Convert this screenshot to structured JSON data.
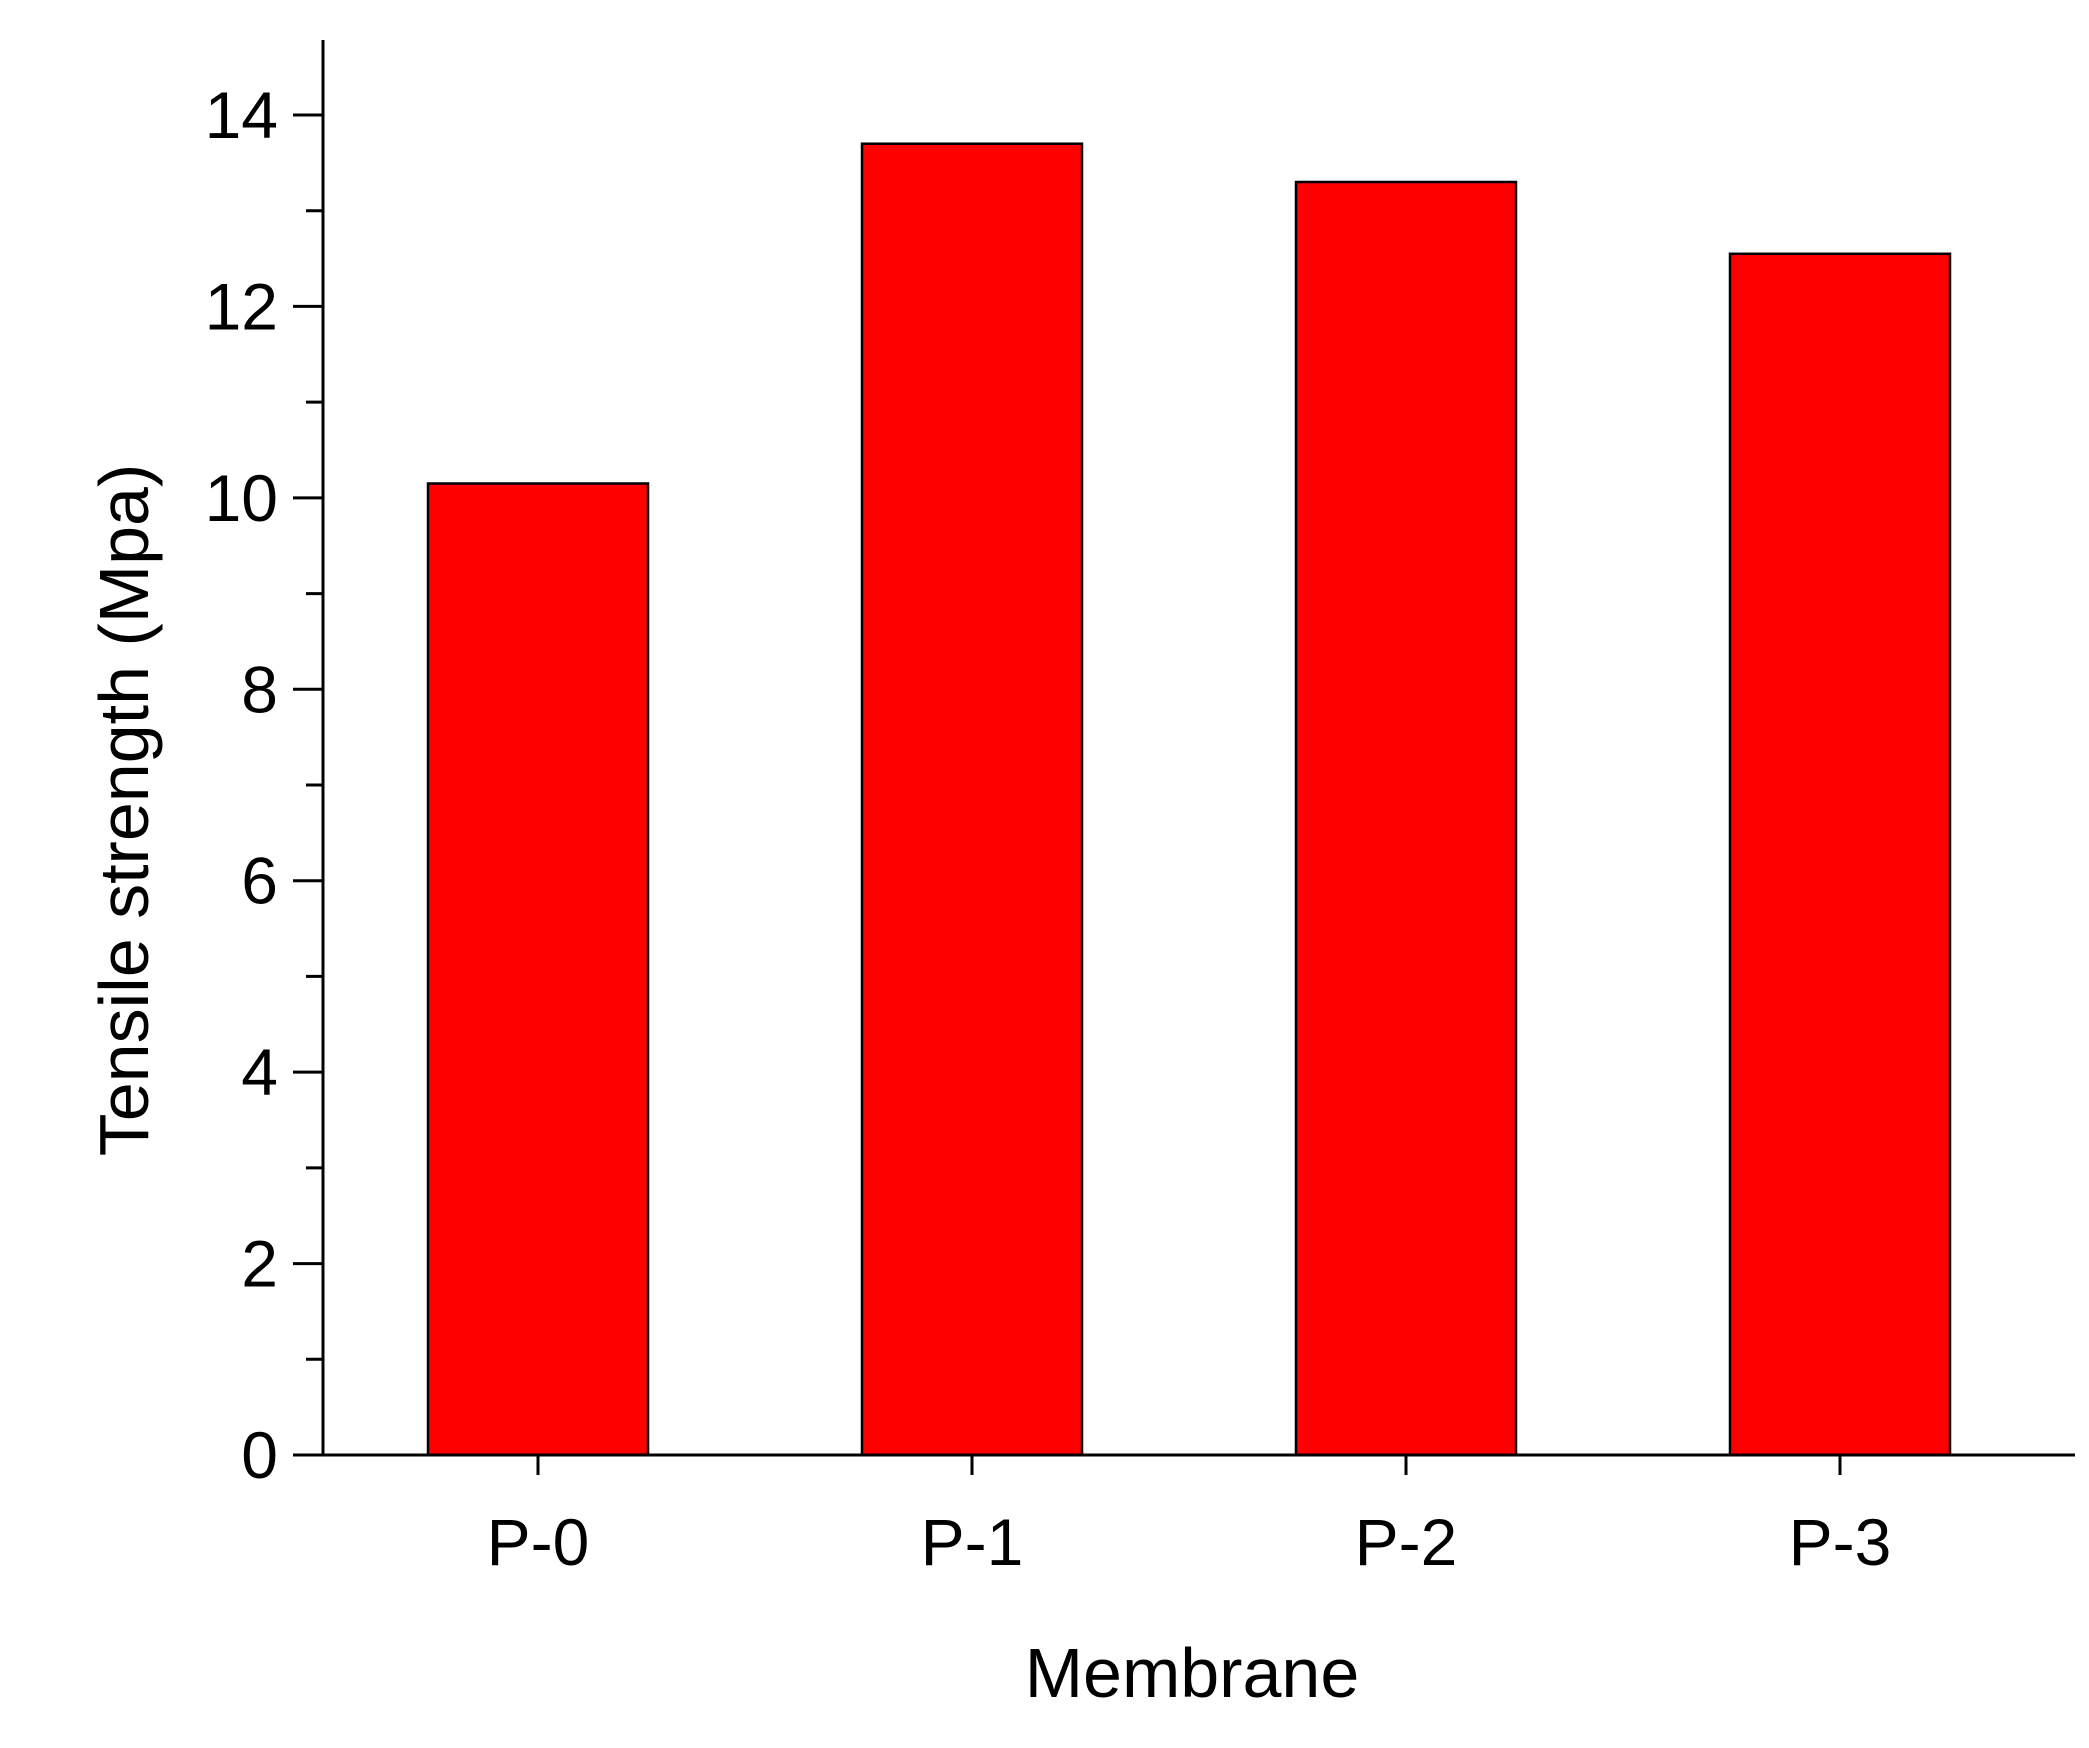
{
  "chart_data": {
    "type": "bar",
    "title": "",
    "xlabel": "Membrane",
    "ylabel": "Tensile strength (Mpa)",
    "categories": [
      "P-0",
      "P-1",
      "P-2",
      "P-3"
    ],
    "values": [
      10.15,
      13.7,
      13.3,
      12.55
    ],
    "ylim": [
      0,
      14.8
    ],
    "yticks": [
      0,
      2,
      4,
      6,
      8,
      10,
      12,
      14
    ],
    "y_minor_step": 1,
    "bar_color": "#ff0000",
    "bar_edge_color": "#000000",
    "axis_color": "#000000",
    "grid": false,
    "legend": "none"
  }
}
